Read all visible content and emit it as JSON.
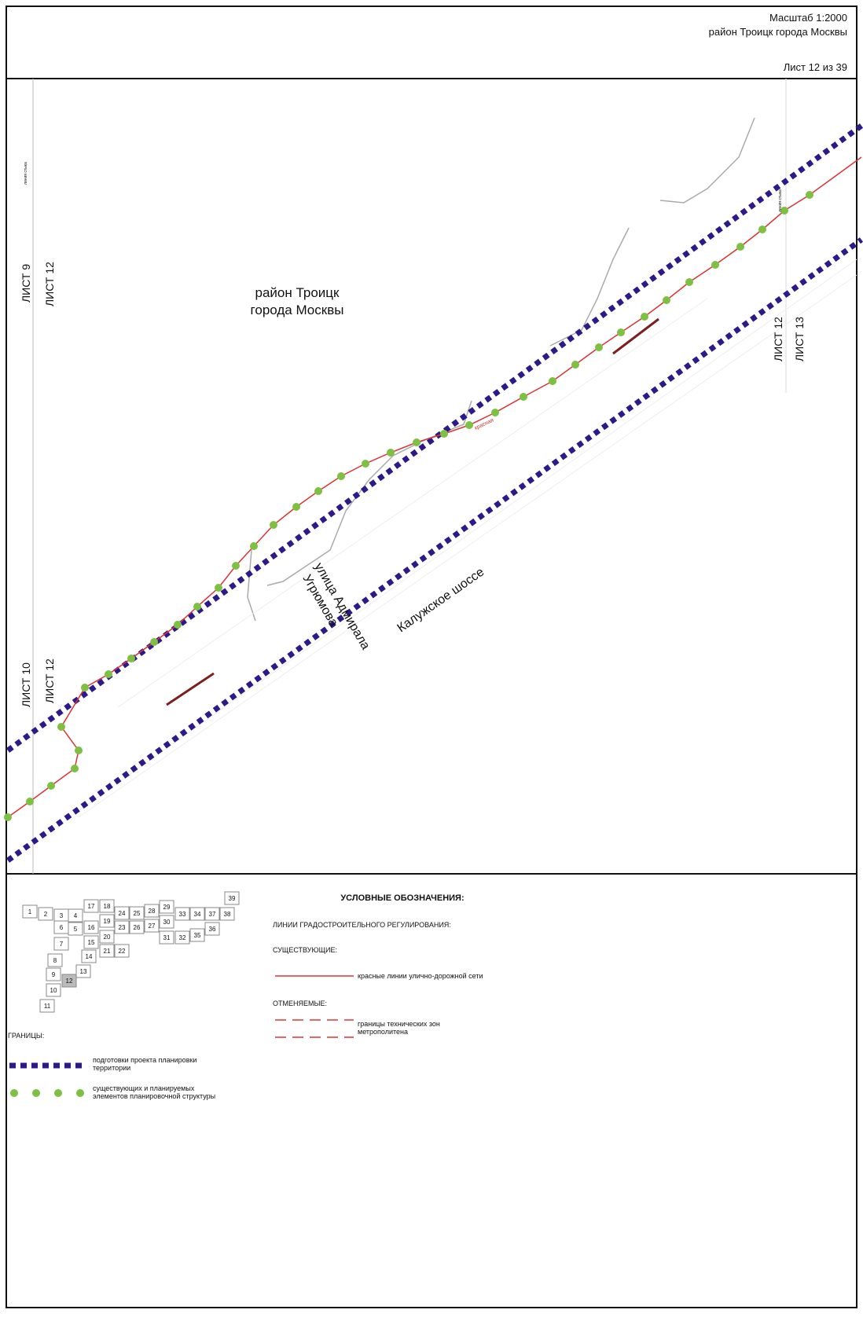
{
  "header": {
    "scale": "Масштаб 1:2000",
    "district": "район Троицк города Москвы",
    "sheet": "Лист 12 из 39"
  },
  "map_labels": {
    "district_line1": "район Троицк",
    "district_line2": "города Москвы",
    "left_top_a": "ЛИСТ 9",
    "left_top_b": "ЛИСТ 12",
    "left_bottom_a": "ЛИСТ 10",
    "left_bottom_b": "ЛИСТ 12",
    "right_a": "ЛИСТ 12",
    "right_b": "ЛИСТ 13",
    "road_1": "Калужское шоссе",
    "road_2_line1": "улица Адмирала",
    "road_2_line2": "Угрюмова",
    "join_line": "линия стыка",
    "red_line": "красная"
  },
  "sheet_index": {
    "sheets": [
      "1",
      "2",
      "3",
      "4",
      "17",
      "18",
      "24",
      "25",
      "28",
      "29",
      "33",
      "34",
      "37",
      "38",
      "39",
      "6",
      "5",
      "16",
      "19",
      "23",
      "26",
      "27",
      "30",
      "31",
      "32",
      "35",
      "36",
      "7",
      "15",
      "20",
      "21",
      "22",
      "8",
      "14",
      "9",
      "13",
      "12",
      "10",
      "11"
    ],
    "current": "12"
  },
  "legend": {
    "title": "УСЛОВНЫЕ ОБОЗНАЧЕНИЯ:",
    "regulation": "ЛИНИИ ГРАДОСТРОИТЕЛЬНОГО РЕГУЛИРОВАНИЯ:",
    "existing": "СУЩЕСТВУЮЩИЕ:",
    "red_lines": "красные линии улично-дорожной сети",
    "cancelled": "ОТМЕНЯЕМЫЕ:",
    "metro_1": "границы технических зон",
    "metro_2": "метрополитена",
    "boundaries": "ГРАНИЦЫ:",
    "planning_1": "подготовки проекта планировки",
    "planning_2": "территории",
    "elements_1": "существующих и планируемых",
    "elements_2": "элементов планировочной структуры"
  }
}
